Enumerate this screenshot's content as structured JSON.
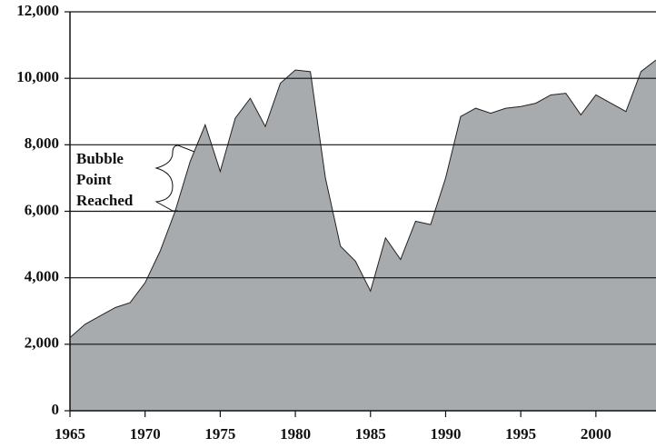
{
  "chart_data": {
    "type": "area",
    "x": [
      1965,
      1966,
      1967,
      1968,
      1969,
      1970,
      1971,
      1972,
      1973,
      1974,
      1975,
      1976,
      1977,
      1978,
      1979,
      1980,
      1981,
      1982,
      1983,
      1984,
      1985,
      1986,
      1987,
      1988,
      1989,
      1990,
      1991,
      1992,
      1993,
      1994,
      1995,
      1996,
      1997,
      1998,
      1999,
      2000,
      2001,
      2002,
      2003,
      2004
    ],
    "values": [
      2200,
      2600,
      2850,
      3100,
      3250,
      3850,
      4800,
      6000,
      7500,
      8600,
      7200,
      8800,
      9400,
      8550,
      9850,
      10250,
      10200,
      7000,
      4950,
      4500,
      3600,
      5200,
      4550,
      5700,
      5600,
      7000,
      8850,
      9100,
      8950,
      9100,
      9150,
      9250,
      9500,
      9550,
      8900,
      9500,
      9250,
      9000,
      10200,
      10550
    ],
    "color": "#a8abad",
    "xlim": [
      1965,
      2004
    ],
    "xticks": [
      1965,
      1970,
      1975,
      1980,
      1985,
      1990,
      1995,
      2000
    ],
    "ylim": [
      0,
      12000
    ],
    "yticks": [
      0,
      {
        "value": 2000,
        "label": "2,000"
      },
      {
        "value": 4000,
        "label": "4,000"
      },
      {
        "value": 6000,
        "label": "6,000"
      },
      {
        "value": 8000,
        "label": "8,000"
      },
      {
        "value": 10000,
        "label": "10,000"
      },
      {
        "value": 12000,
        "label": "12,000"
      }
    ],
    "grid": true,
    "annotation": [
      "Bubble",
      "Point",
      "Reached"
    ]
  }
}
